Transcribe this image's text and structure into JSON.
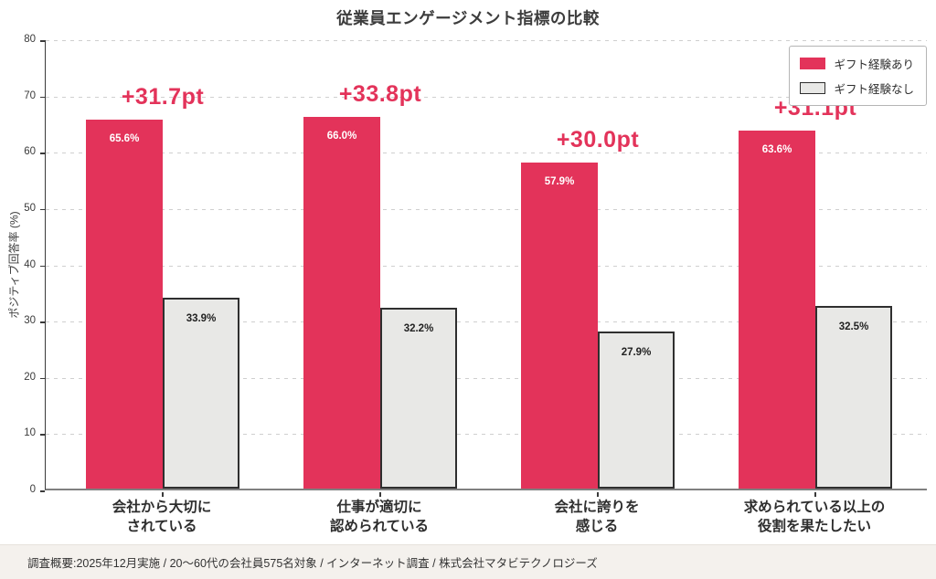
{
  "page": {
    "footer": "調査概要:2025年12月実施 / 20〜60代の会社員575名対象 / インターネット調査 / 株式会社マタビテクノロジーズ"
  },
  "chart_data": {
    "type": "bar",
    "title": "従業員エンゲージメント指標の比較",
    "ylabel": "ポジティブ回答率 (%)",
    "ylim": [
      0,
      80
    ],
    "yticks": [
      0,
      10,
      20,
      30,
      40,
      50,
      60,
      70,
      80
    ],
    "grid": "horizontal-dashed",
    "legend_position": "top-right",
    "categories": [
      "会社から大切に\nされている",
      "仕事が適切に\n認められている",
      "会社に誇りを\n感じる",
      "求められている以上の\n役割を果たしたい"
    ],
    "series": [
      {
        "name": "ギフト経験あり",
        "color": "#E3335A",
        "value_text_color": "#ffffff",
        "values": [
          65.6,
          66.0,
          57.9,
          63.6
        ],
        "value_labels": [
          "65.6%",
          "66.0%",
          "57.9%",
          "63.6%"
        ]
      },
      {
        "name": "ギフト経験なし",
        "color": "#E8E8E6",
        "border_color": "#2F2F2F",
        "value_text_color": "#222222",
        "values": [
          33.9,
          32.2,
          27.9,
          32.5
        ],
        "value_labels": [
          "33.9%",
          "32.2%",
          "27.9%",
          "32.5%"
        ]
      }
    ],
    "diff_labels": [
      "+31.7pt",
      "+33.8pt",
      "+30.0pt",
      "+31.1pt"
    ],
    "diff_color": "#E3335A"
  }
}
